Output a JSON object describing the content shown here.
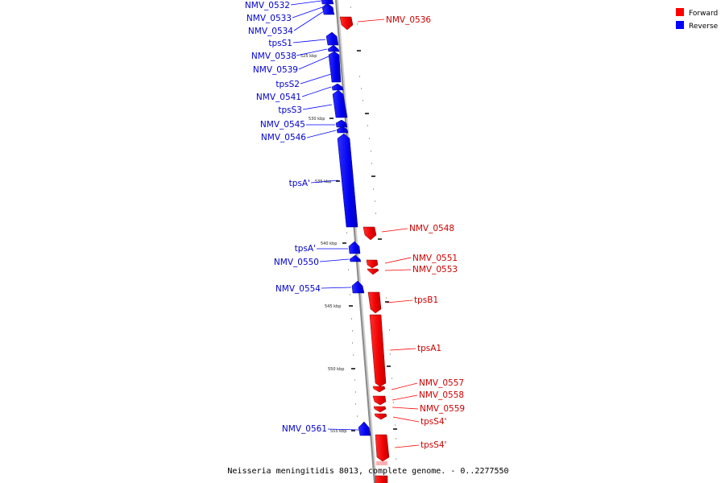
{
  "caption": "Neisseria meningitidis 8013, complete genome. - 0..2277550",
  "legend": {
    "forward_label": "Forward",
    "reverse_label": "Reverse",
    "forward_color": "#ff0000",
    "reverse_color": "#0000ff"
  },
  "ticks": {
    "t525": "525 kbp",
    "t530": "530 kbp",
    "t535": "535 kbp",
    "t540": "540 kbp",
    "t545": "545 kbp",
    "t550": "550 kbp",
    "t555": "555 kbp"
  },
  "genes": {
    "nmv_0532": "NMV_0532",
    "nmv_0533": "NMV_0533",
    "nmv_0534": "NMV_0534",
    "nmv_0536": "NMV_0536",
    "tpss1": "tpsS1",
    "nmv_0538": "NMV_0538",
    "nmv_0539": "NMV_0539",
    "tpss2": "tpsS2",
    "nmv_0541": "NMV_0541",
    "tpss3": "tpsS3",
    "nmv_0545": "NMV_0545",
    "nmv_0546": "NMV_0546",
    "tpsa_prime_1": "tpsA'",
    "nmv_0548": "NMV_0548",
    "tpsa_prime_2": "tpsA'",
    "nmv_0550": "NMV_0550",
    "nmv_0551": "NMV_0551",
    "nmv_0553": "NMV_0553",
    "nmv_0554": "NMV_0554",
    "tpsb1": "tpsB1",
    "tpsa1": "tpsA1",
    "nmv_0557": "NMV_0557",
    "nmv_0558": "NMV_0558",
    "nmv_0559": "NMV_0559",
    "tpss4_prime_1": "tpsS4'",
    "nmv_0561": "NMV_0561",
    "tpss4_prime_2": "tpsS4'"
  }
}
